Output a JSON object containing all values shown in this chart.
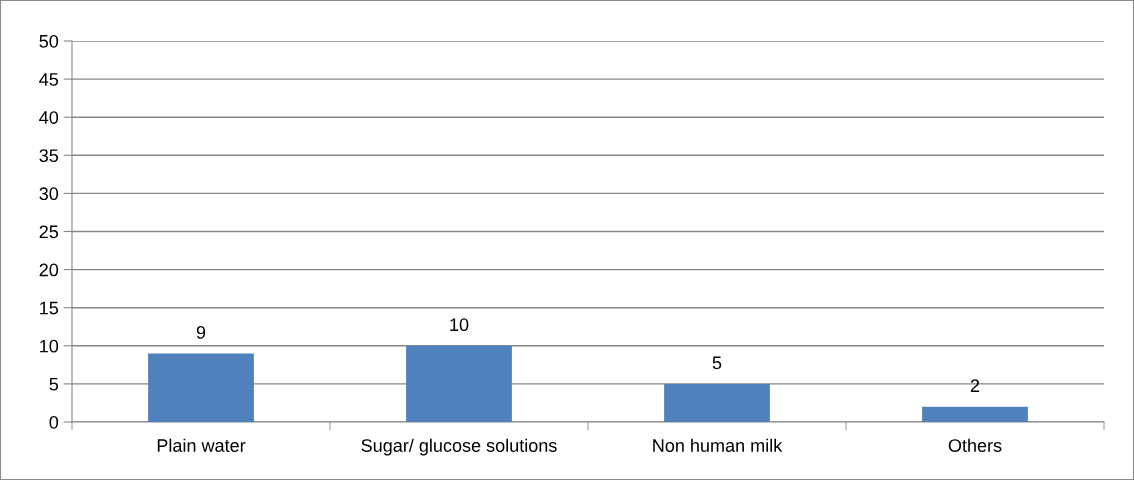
{
  "chart_data": {
    "type": "bar",
    "categories": [
      "Plain water",
      "Sugar/ glucose solutions",
      "Non human milk",
      "Others"
    ],
    "values": [
      9,
      10,
      5,
      2
    ],
    "color": "#4f81bd",
    "ylim": [
      0,
      50
    ],
    "yticks": [
      0,
      5,
      10,
      15,
      20,
      25,
      30,
      35,
      40,
      45,
      50
    ],
    "grid": "y",
    "data_labels": true
  }
}
